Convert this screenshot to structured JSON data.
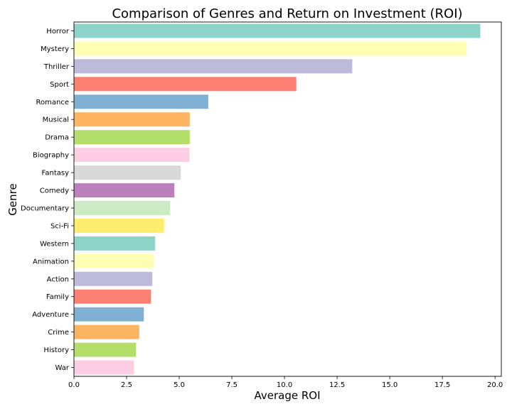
{
  "chart_data": {
    "type": "bar",
    "orientation": "horizontal",
    "title": "Comparison of Genres and Return on Investment (ROI)",
    "xlabel": "Average ROI",
    "ylabel": "Genre",
    "xlim": [
      0,
      20.3
    ],
    "xticks": [
      "0.0",
      "2.5",
      "5.0",
      "7.5",
      "10.0",
      "12.5",
      "15.0",
      "17.5",
      "20.0"
    ],
    "grid": false,
    "legend": "none",
    "categories": [
      "Horror",
      "Mystery",
      "Thriller",
      "Sport",
      "Romance",
      "Musical",
      "Drama",
      "Biography",
      "Fantasy",
      "Comedy",
      "Documentary",
      "Sci-Fi",
      "Western",
      "Animation",
      "Action",
      "Family",
      "Adventure",
      "Crime",
      "History",
      "War"
    ],
    "values": [
      19.3,
      18.65,
      13.22,
      10.56,
      6.38,
      5.5,
      5.5,
      5.48,
      5.07,
      4.77,
      4.57,
      4.28,
      3.86,
      3.8,
      3.72,
      3.66,
      3.32,
      3.1,
      2.95,
      2.85
    ],
    "colors": [
      "#8dd3c7",
      "#ffffb3",
      "#bebada",
      "#fb8072",
      "#80b1d3",
      "#fdb462",
      "#b3de69",
      "#fccde5",
      "#d9d9d9",
      "#bc80bd",
      "#ccebc5",
      "#ffed6f"
    ]
  }
}
